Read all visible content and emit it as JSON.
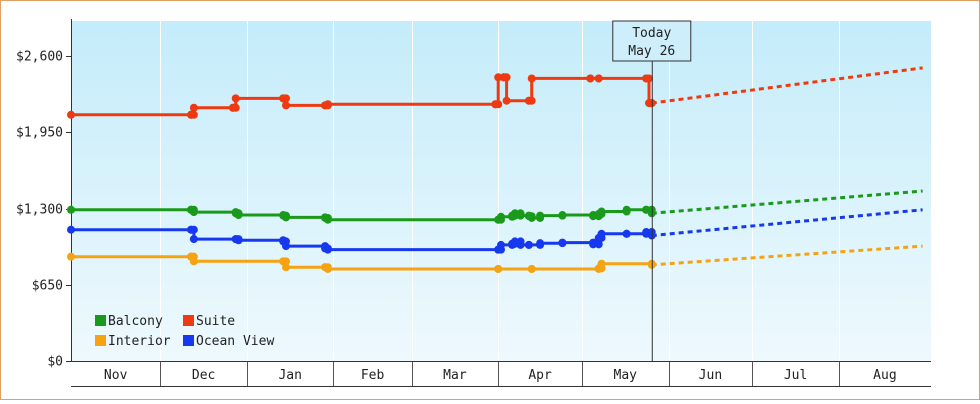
{
  "chart_data": {
    "type": "line",
    "title": "",
    "xlabel": "",
    "ylabel": "",
    "x_axis_labels": [
      "Nov",
      "Dec",
      "Jan",
      "Feb",
      "Mar",
      "Apr",
      "May",
      "Jun",
      "Jul",
      "Aug"
    ],
    "y_ticks": [
      "$0",
      "$650",
      "$1,300",
      "$1,950",
      "$2,600"
    ],
    "ylim": [
      0,
      2900
    ],
    "grid": "vertical month separators",
    "legend_position": "bottom-left",
    "today_marker": {
      "line1": "Today",
      "line2": "May 26",
      "date": "2025-05-26"
    },
    "projection_end_date": "2025-08-31",
    "series": [
      {
        "name": "Balcony",
        "color": "#1a9a1a",
        "values": [
          [
            "2024-10-30",
            1290
          ],
          [
            "2024-12-12",
            1290
          ],
          [
            "2024-12-13",
            1270
          ],
          [
            "2024-12-28",
            1260
          ],
          [
            "2024-12-29",
            1245
          ],
          [
            "2025-01-14",
            1240
          ],
          [
            "2025-01-15",
            1225
          ],
          [
            "2025-01-29",
            1220
          ],
          [
            "2025-01-30",
            1205
          ],
          [
            "2025-04-01",
            1205
          ],
          [
            "2025-04-02",
            1230
          ],
          [
            "2025-04-06",
            1240
          ],
          [
            "2025-04-07",
            1260
          ],
          [
            "2025-04-09",
            1240
          ],
          [
            "2025-04-12",
            1235
          ],
          [
            "2025-04-13",
            1220
          ],
          [
            "2025-04-16",
            1240
          ],
          [
            "2025-04-24",
            1245
          ],
          [
            "2025-05-05",
            1235
          ],
          [
            "2025-05-07",
            1255
          ],
          [
            "2025-05-08",
            1275
          ],
          [
            "2025-05-17",
            1290
          ],
          [
            "2025-05-24",
            1290
          ],
          [
            "2025-05-26",
            1260
          ]
        ],
        "projection": [
          1260,
          1450
        ]
      },
      {
        "name": "Suite",
        "color": "#ee3a10",
        "values": [
          [
            "2024-10-30",
            2100
          ],
          [
            "2024-12-12",
            2100
          ],
          [
            "2024-12-13",
            2160
          ],
          [
            "2024-12-27",
            2160
          ],
          [
            "2024-12-28",
            2240
          ],
          [
            "2025-01-14",
            2240
          ],
          [
            "2025-01-15",
            2180
          ],
          [
            "2025-01-29",
            2180
          ],
          [
            "2025-01-30",
            2190
          ],
          [
            "2025-03-31",
            2190
          ],
          [
            "2025-04-01",
            2420
          ],
          [
            "2025-04-03",
            2420
          ],
          [
            "2025-04-04",
            2220
          ],
          [
            "2025-04-12",
            2220
          ],
          [
            "2025-04-13",
            2410
          ],
          [
            "2025-05-04",
            2410
          ],
          [
            "2025-05-07",
            2410
          ],
          [
            "2025-05-24",
            2410
          ],
          [
            "2025-05-25",
            2200
          ],
          [
            "2025-05-26",
            2200
          ]
        ],
        "projection": [
          2200,
          2500
        ]
      },
      {
        "name": "Interior",
        "color": "#f5a312",
        "values": [
          [
            "2024-10-30",
            890
          ],
          [
            "2024-12-12",
            890
          ],
          [
            "2024-12-13",
            850
          ],
          [
            "2025-01-14",
            850
          ],
          [
            "2025-01-15",
            800
          ],
          [
            "2025-01-29",
            800
          ],
          [
            "2025-01-30",
            785
          ],
          [
            "2025-04-01",
            785
          ],
          [
            "2025-04-13",
            785
          ],
          [
            "2025-05-07",
            790
          ],
          [
            "2025-05-08",
            830
          ],
          [
            "2025-05-26",
            820
          ]
        ],
        "projection": [
          820,
          980
        ]
      },
      {
        "name": "Ocean View",
        "color": "#1638ee",
        "values": [
          [
            "2024-10-30",
            1120
          ],
          [
            "2024-12-12",
            1120
          ],
          [
            "2024-12-13",
            1040
          ],
          [
            "2024-12-28",
            1040
          ],
          [
            "2024-12-29",
            1030
          ],
          [
            "2025-01-14",
            1020
          ],
          [
            "2025-01-15",
            980
          ],
          [
            "2025-01-29",
            960
          ],
          [
            "2025-01-30",
            950
          ],
          [
            "2025-04-01",
            950
          ],
          [
            "2025-04-02",
            990
          ],
          [
            "2025-04-06",
            1000
          ],
          [
            "2025-04-07",
            1020
          ],
          [
            "2025-04-09",
            990
          ],
          [
            "2025-04-12",
            990
          ],
          [
            "2025-04-16",
            1005
          ],
          [
            "2025-04-24",
            1010
          ],
          [
            "2025-05-05",
            995
          ],
          [
            "2025-05-07",
            1050
          ],
          [
            "2025-05-08",
            1085
          ],
          [
            "2025-05-17",
            1085
          ],
          [
            "2025-05-24",
            1100
          ],
          [
            "2025-05-26",
            1070
          ]
        ],
        "projection": [
          1070,
          1290
        ]
      }
    ]
  }
}
